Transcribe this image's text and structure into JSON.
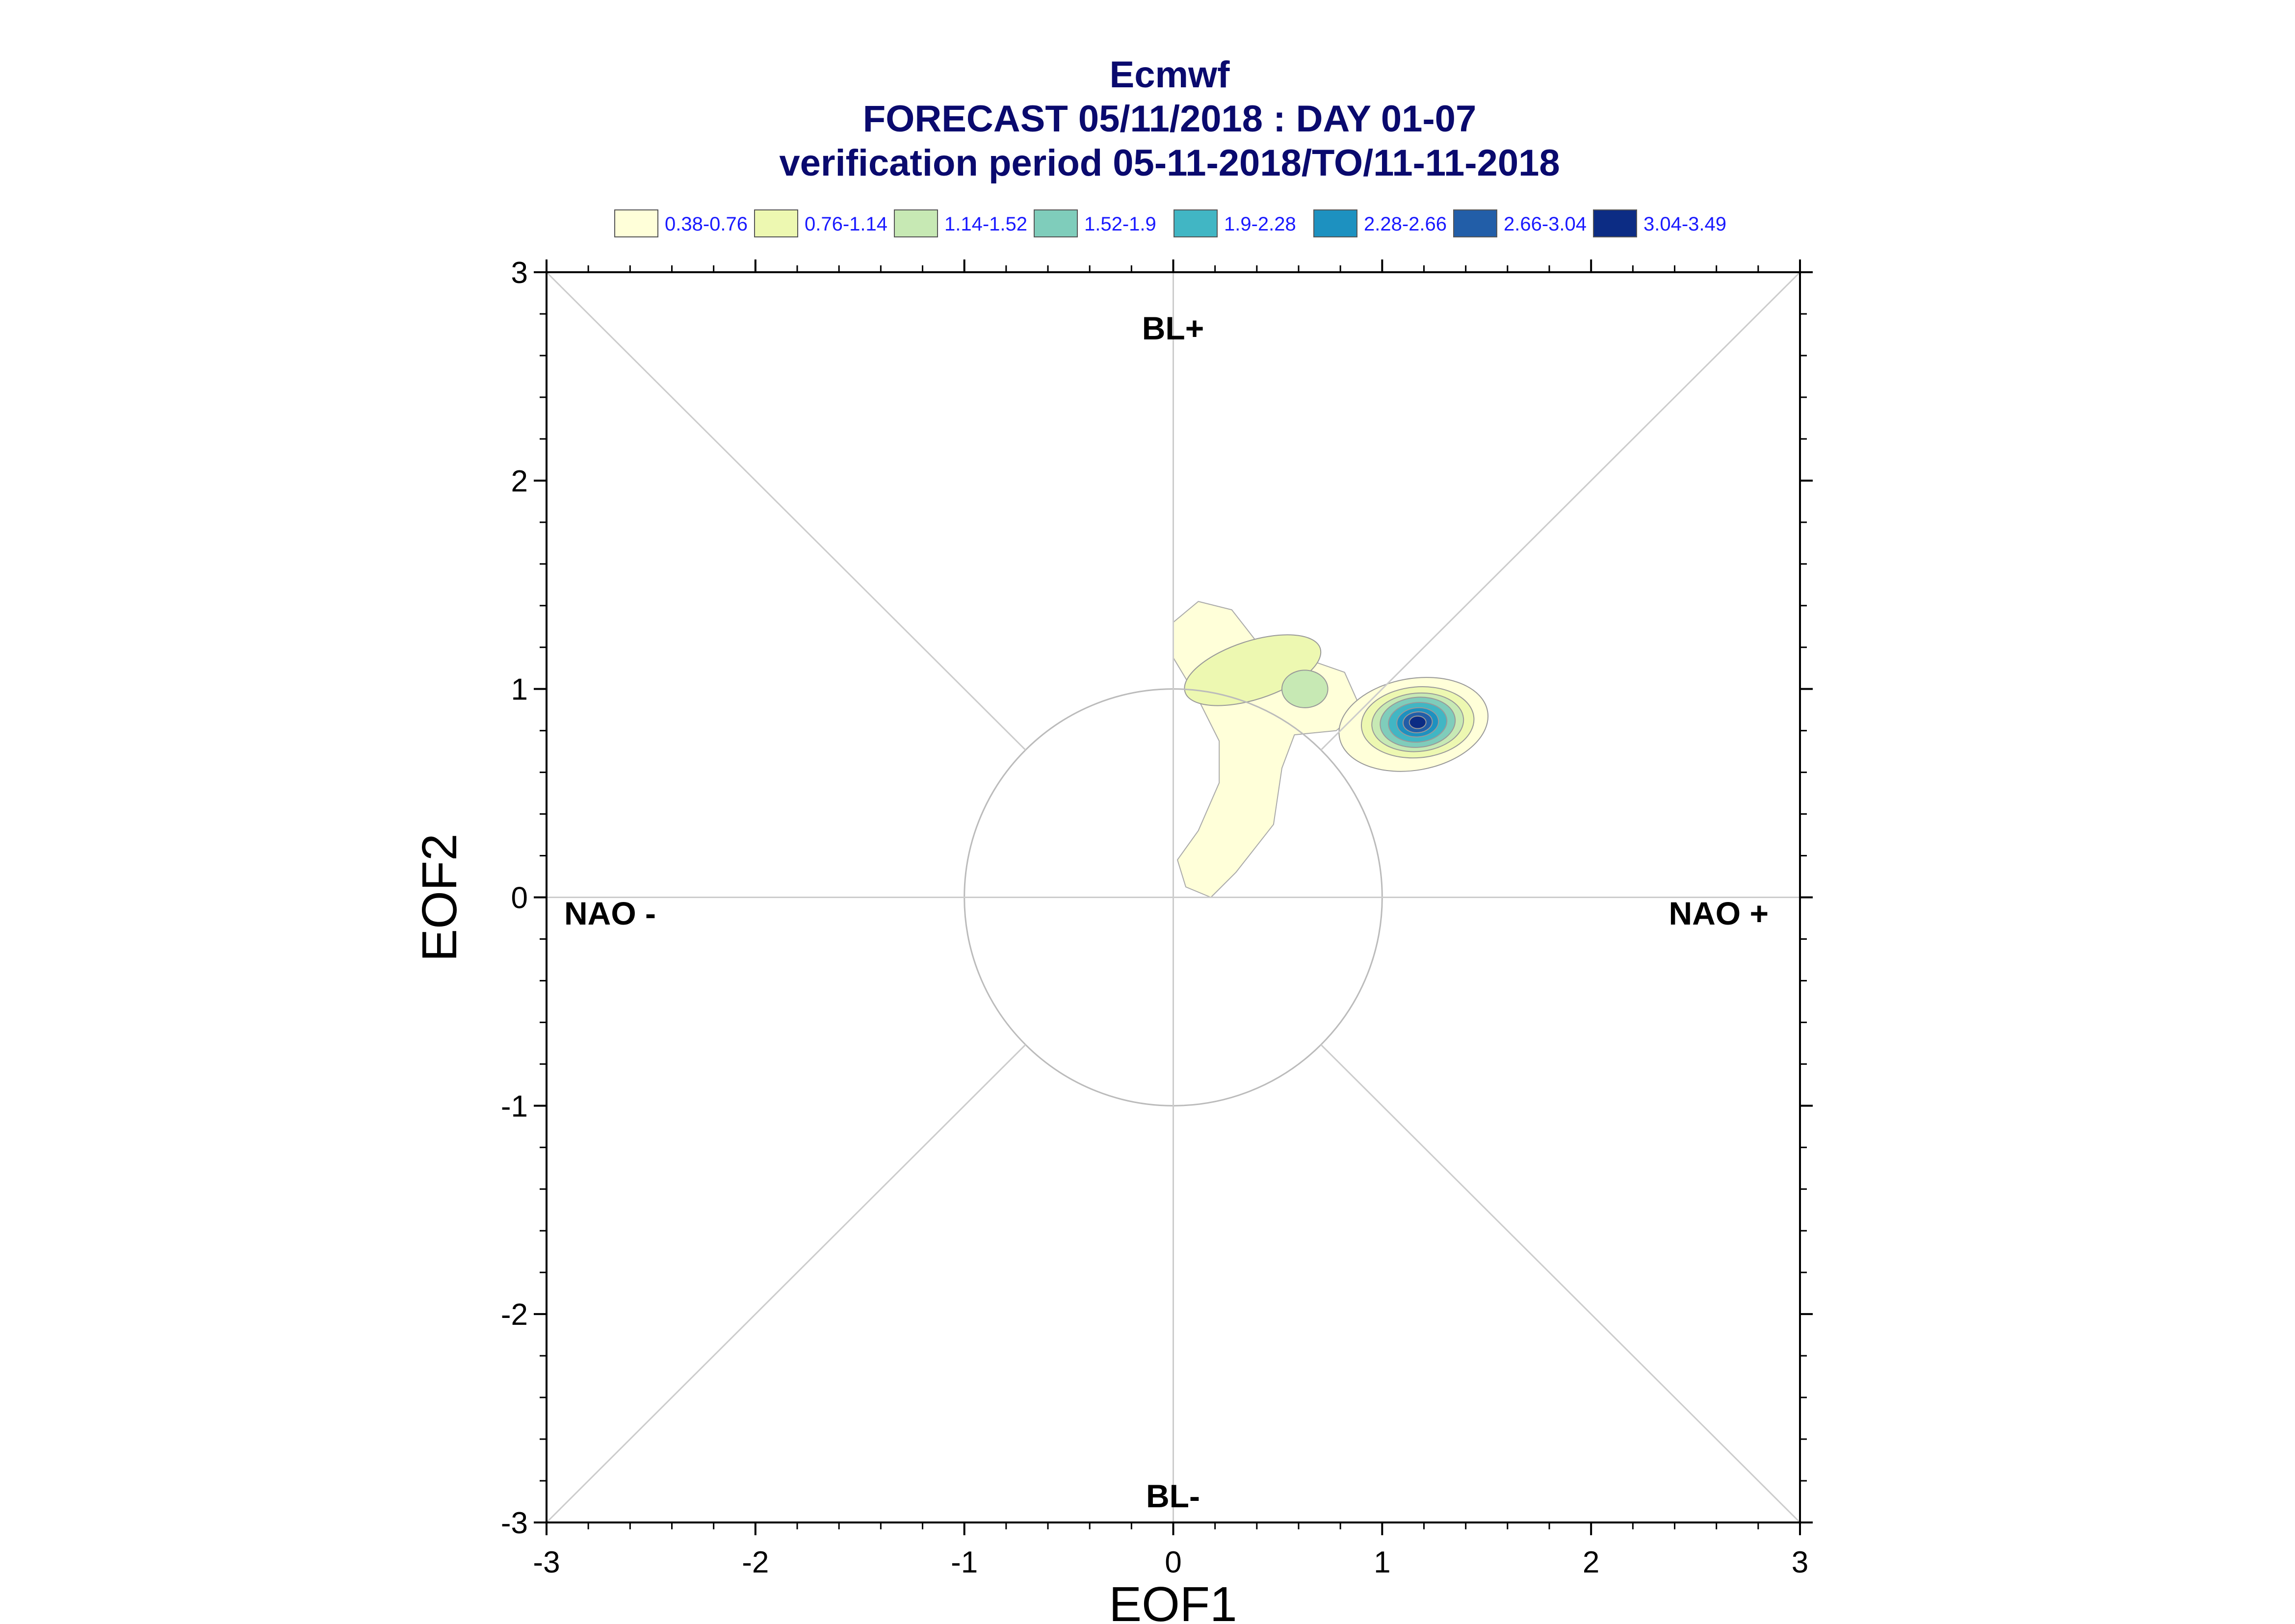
{
  "chart_data": {
    "type": "contour",
    "title": "Ecmwf",
    "subtitle": "FORECAST 05/11/2018 : DAY 01-07",
    "subtitle2": "verification period 05-11-2018/TO/11-11-2018",
    "xlabel": "EOF1",
    "ylabel": "EOF2",
    "xlim": [
      -3,
      3
    ],
    "ylim": [
      -3,
      3
    ],
    "xticks": [
      "-3",
      "-2",
      "-1",
      "0",
      "1",
      "2",
      "3"
    ],
    "yticks": [
      "-3",
      "-2",
      "-1",
      "0",
      "1",
      "2",
      "3"
    ],
    "regime_labels": {
      "top": "BL+",
      "bottom": "BL-",
      "left": "NAO -",
      "right": "NAO +"
    },
    "reference_circle_radius": 1,
    "legend": [
      {
        "label": "0.38-0.76",
        "color": "#ffffd9"
      },
      {
        "label": "0.76-1.14",
        "color": "#edf8b1"
      },
      {
        "label": "1.14-1.52",
        "color": "#c7e9b4"
      },
      {
        "label": "1.52-1.9",
        "color": "#7fcdbb"
      },
      {
        "label": "1.9-2.28",
        "color": "#41b6c4"
      },
      {
        "label": "2.28-2.66",
        "color": "#1d91c0"
      },
      {
        "label": "2.66-3.04",
        "color": "#225ea8"
      },
      {
        "label": "3.04-3.49",
        "color": "#0c2c84"
      }
    ],
    "density_peak": {
      "x": 1.17,
      "y": 0.84,
      "max_level": "3.04-3.49"
    },
    "secondary_peak": {
      "x": 0.63,
      "y": 1.0,
      "max_level": "1.14-1.52"
    }
  }
}
